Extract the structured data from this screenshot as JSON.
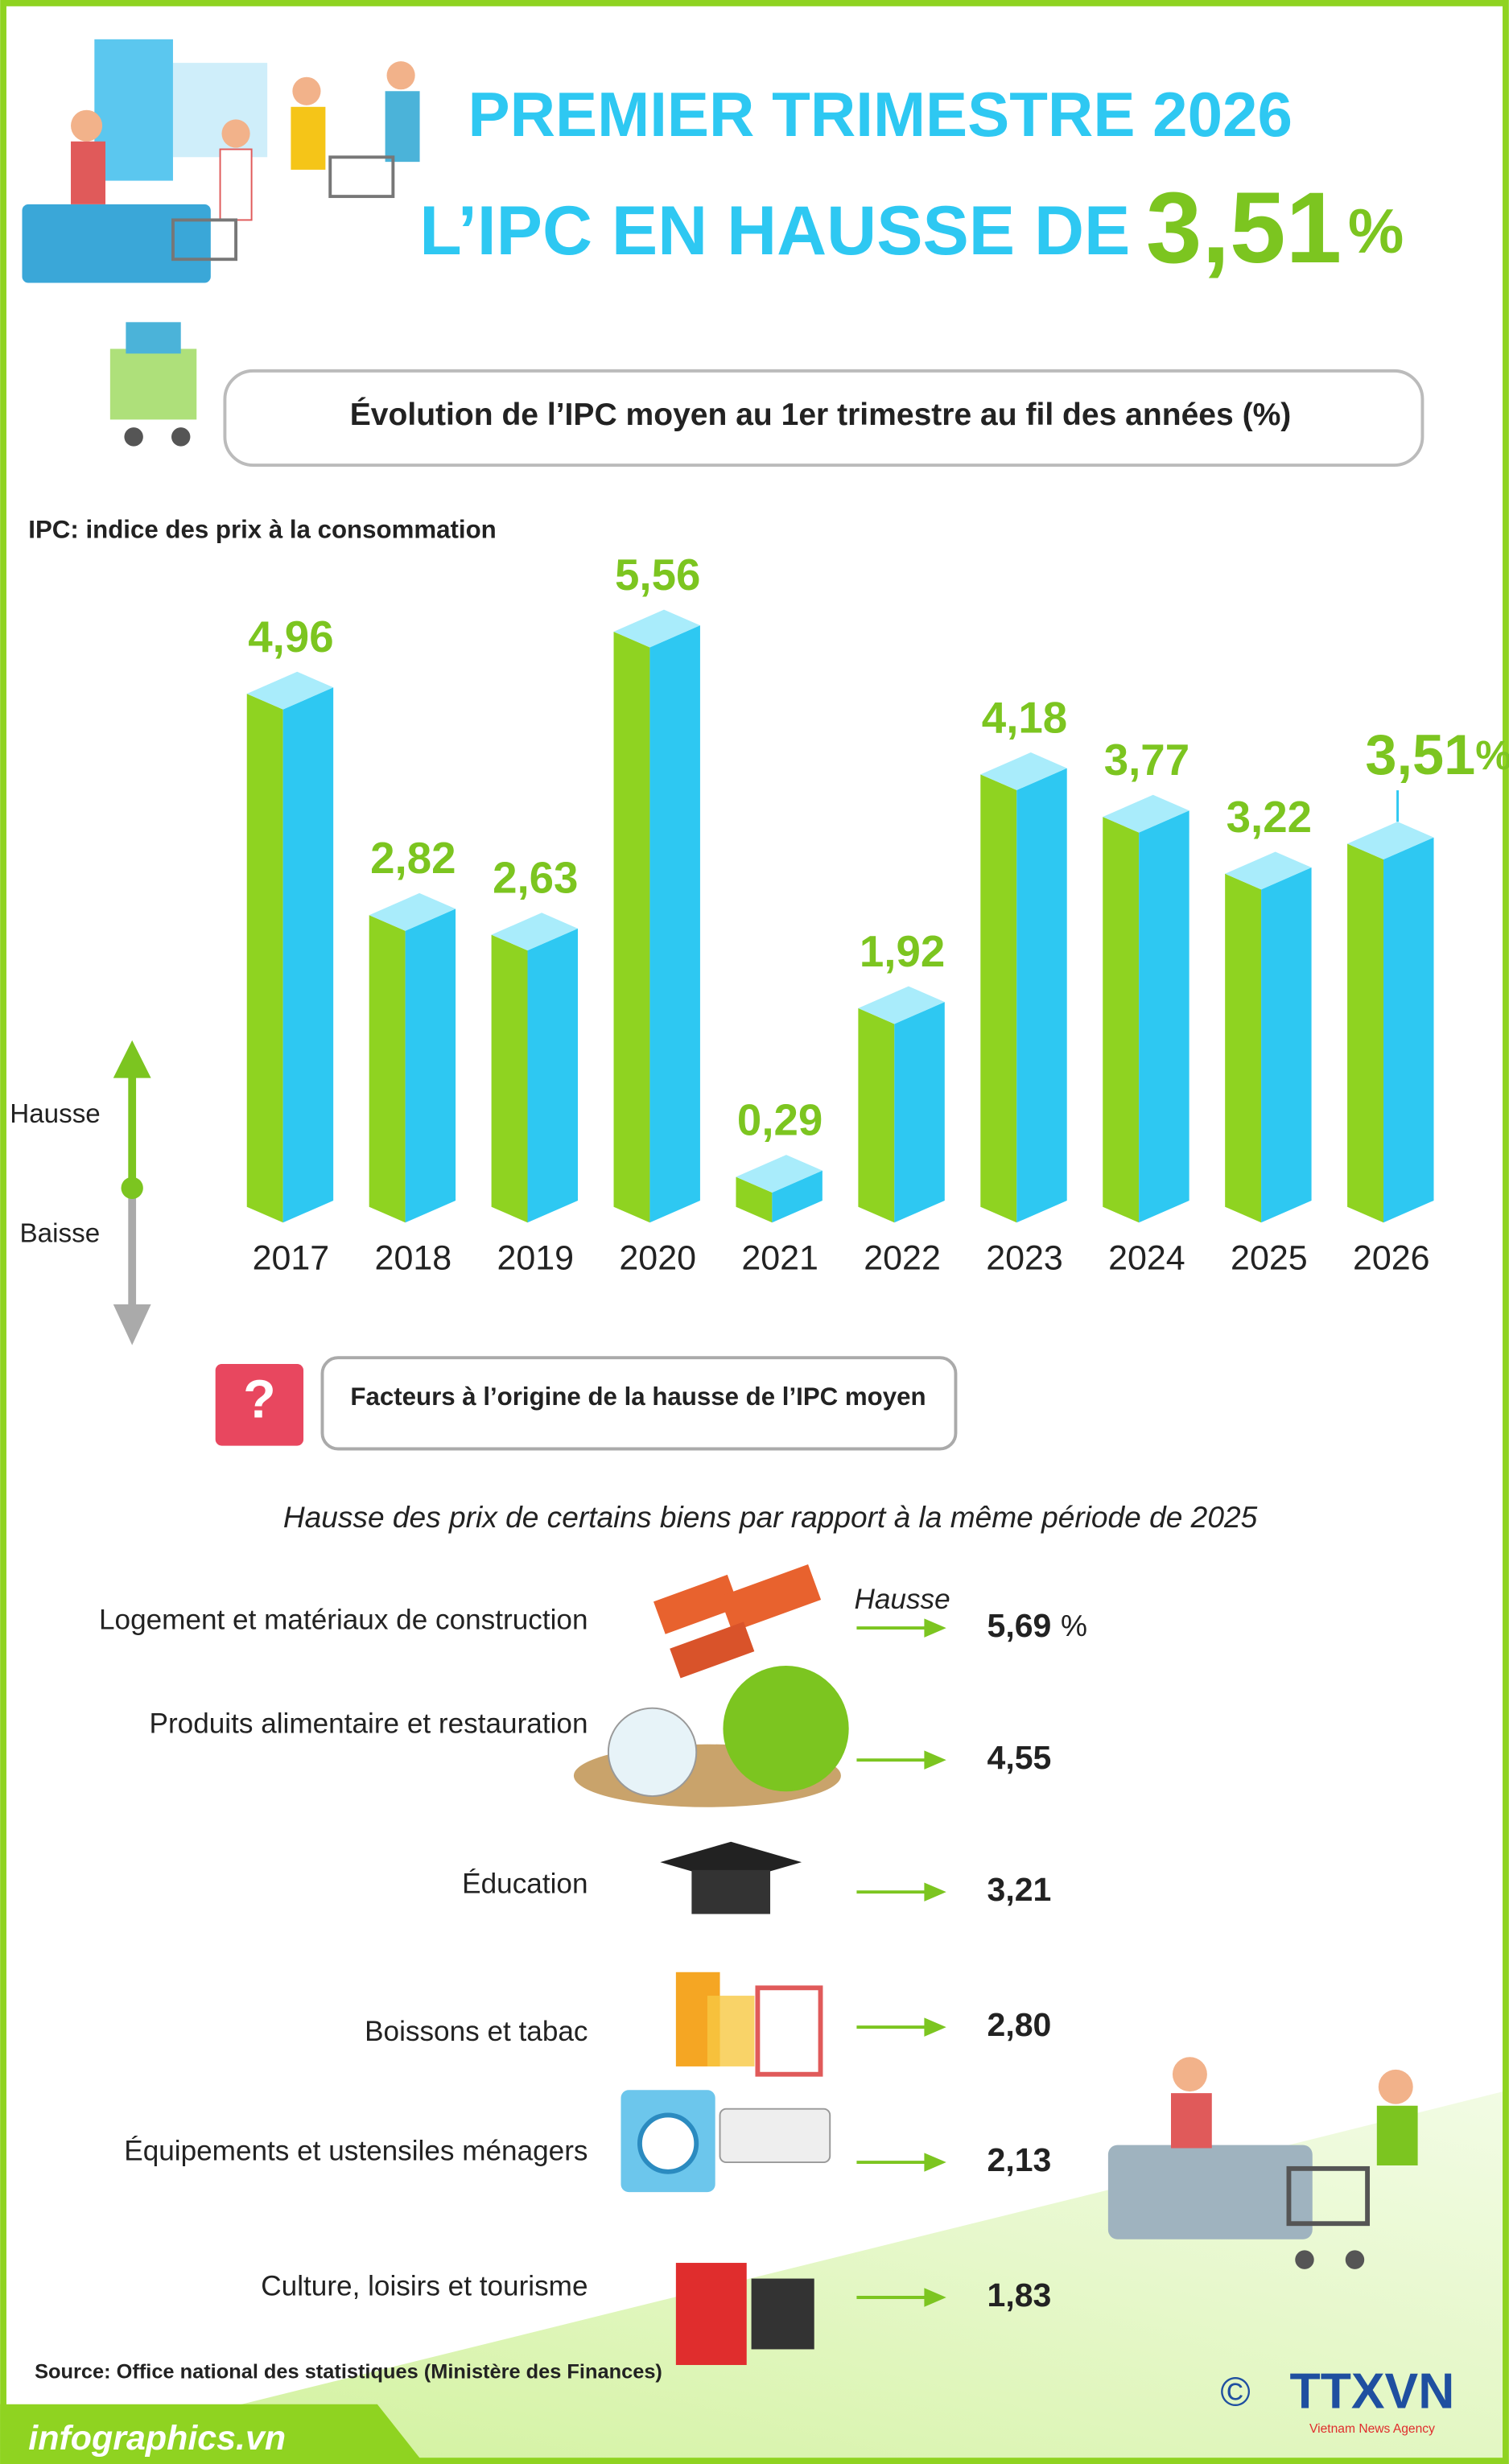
{
  "header": {
    "title_line1": "PREMIER TRIMESTRE 2026",
    "title_line2": "L’IPC EN HAUSSE DE",
    "headline_value": "3,51",
    "headline_unit": "%"
  },
  "chart_data": {
    "type": "bar",
    "title": "Évolution de l’IPC moyen au 1er trimestre au fil des années (%)",
    "subtitle": "IPC: indice des prix à la consommation",
    "categories": [
      "2017",
      "2018",
      "2019",
      "2020",
      "2021",
      "2022",
      "2023",
      "2024",
      "2025",
      "2026"
    ],
    "values": [
      4.96,
      2.82,
      2.63,
      5.56,
      0.29,
      1.92,
      4.18,
      3.77,
      3.22,
      3.51
    ],
    "value_labels": [
      "4,96",
      "2,82",
      "2,63",
      "5,56",
      "0,29",
      "1,92",
      "4,18",
      "3,77",
      "3,22",
      "3,51"
    ],
    "last_label_unit": "%",
    "colors": {
      "front": "#8fd321",
      "side": "#2ec8f2",
      "top": "#a9ecfb",
      "label": "#7cc520"
    },
    "ylim": [
      0,
      6
    ],
    "direction_labels": {
      "up": "Hausse",
      "down": "Baisse"
    }
  },
  "factors": {
    "title": "Facteurs à l’origine de la hausse de l’IPC moyen",
    "subtitle": "Hausse des prix de certains biens par rapport à la même période de 2025",
    "arrow_label": "Hausse",
    "unit": "%",
    "items": [
      {
        "label": "Logement et matériaux de construction",
        "value": "5,69"
      },
      {
        "label": "Produits alimentaire et restauration",
        "value": "4,55"
      },
      {
        "label": "Éducation",
        "value": "3,21"
      },
      {
        "label": "Boissons et tabac",
        "value": "2,80"
      },
      {
        "label": "Équipements et ustensiles ménagers",
        "value": "2,13"
      },
      {
        "label": "Culture, loisirs et tourisme",
        "value": "1,83"
      }
    ]
  },
  "footer": {
    "source": "Source: Office national des statistiques (Ministère des Finances)",
    "site": "infographics.vn",
    "copyright": "©",
    "agency": "TTXVN",
    "agency_sub": "Vietnam News Agency"
  }
}
